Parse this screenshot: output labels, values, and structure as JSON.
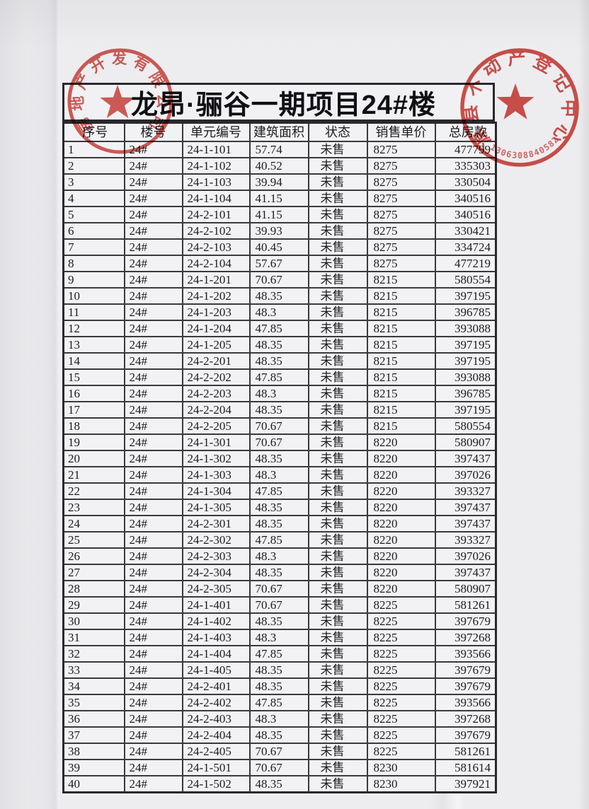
{
  "page": {
    "title": "龙昂·骊谷一期项目24#楼"
  },
  "stamps": {
    "color": "#cf3b33",
    "left": {
      "arc_text": "房地产开发有限公司",
      "symbol": "star"
    },
    "right": {
      "arc_text": "源县不动产登记中心",
      "code": "1306308840582",
      "symbol": "star"
    }
  },
  "table": {
    "headers": [
      "序号",
      "楼号",
      "单元编号",
      "建筑面积",
      "状态",
      "销售单价",
      "总房款"
    ],
    "rows": [
      [
        "1",
        "24#",
        "24-1-101",
        "57.74",
        "未售",
        "8275",
        "477799"
      ],
      [
        "2",
        "24#",
        "24-1-102",
        "40.52",
        "未售",
        "8275",
        "335303"
      ],
      [
        "3",
        "24#",
        "24-1-103",
        "39.94",
        "未售",
        "8275",
        "330504"
      ],
      [
        "4",
        "24#",
        "24-1-104",
        "41.15",
        "未售",
        "8275",
        "340516"
      ],
      [
        "5",
        "24#",
        "24-2-101",
        "41.15",
        "未售",
        "8275",
        "340516"
      ],
      [
        "6",
        "24#",
        "24-2-102",
        "39.93",
        "未售",
        "8275",
        "330421"
      ],
      [
        "7",
        "24#",
        "24-2-103",
        "40.45",
        "未售",
        "8275",
        "334724"
      ],
      [
        "8",
        "24#",
        "24-2-104",
        "57.67",
        "未售",
        "8275",
        "477219"
      ],
      [
        "9",
        "24#",
        "24-1-201",
        "70.67",
        "未售",
        "8215",
        "580554"
      ],
      [
        "10",
        "24#",
        "24-1-202",
        "48.35",
        "未售",
        "8215",
        "397195"
      ],
      [
        "11",
        "24#",
        "24-1-203",
        "48.3",
        "未售",
        "8215",
        "396785"
      ],
      [
        "12",
        "24#",
        "24-1-204",
        "47.85",
        "未售",
        "8215",
        "393088"
      ],
      [
        "13",
        "24#",
        "24-1-205",
        "48.35",
        "未售",
        "8215",
        "397195"
      ],
      [
        "14",
        "24#",
        "24-2-201",
        "48.35",
        "未售",
        "8215",
        "397195"
      ],
      [
        "15",
        "24#",
        "24-2-202",
        "47.85",
        "未售",
        "8215",
        "393088"
      ],
      [
        "16",
        "24#",
        "24-2-203",
        "48.3",
        "未售",
        "8215",
        "396785"
      ],
      [
        "17",
        "24#",
        "24-2-204",
        "48.35",
        "未售",
        "8215",
        "397195"
      ],
      [
        "18",
        "24#",
        "24-2-205",
        "70.67",
        "未售",
        "8215",
        "580554"
      ],
      [
        "19",
        "24#",
        "24-1-301",
        "70.67",
        "未售",
        "8220",
        "580907"
      ],
      [
        "20",
        "24#",
        "24-1-302",
        "48.35",
        "未售",
        "8220",
        "397437"
      ],
      [
        "21",
        "24#",
        "24-1-303",
        "48.3",
        "未售",
        "8220",
        "397026"
      ],
      [
        "22",
        "24#",
        "24-1-304",
        "47.85",
        "未售",
        "8220",
        "393327"
      ],
      [
        "23",
        "24#",
        "24-1-305",
        "48.35",
        "未售",
        "8220",
        "397437"
      ],
      [
        "24",
        "24#",
        "24-2-301",
        "48.35",
        "未售",
        "8220",
        "397437"
      ],
      [
        "25",
        "24#",
        "24-2-302",
        "47.85",
        "未售",
        "8220",
        "393327"
      ],
      [
        "26",
        "24#",
        "24-2-303",
        "48.3",
        "未售",
        "8220",
        "397026"
      ],
      [
        "27",
        "24#",
        "24-2-304",
        "48.35",
        "未售",
        "8220",
        "397437"
      ],
      [
        "28",
        "24#",
        "24-2-305",
        "70.67",
        "未售",
        "8220",
        "580907"
      ],
      [
        "29",
        "24#",
        "24-1-401",
        "70.67",
        "未售",
        "8225",
        "581261"
      ],
      [
        "30",
        "24#",
        "24-1-402",
        "48.35",
        "未售",
        "8225",
        "397679"
      ],
      [
        "31",
        "24#",
        "24-1-403",
        "48.3",
        "未售",
        "8225",
        "397268"
      ],
      [
        "32",
        "24#",
        "24-1-404",
        "47.85",
        "未售",
        "8225",
        "393566"
      ],
      [
        "33",
        "24#",
        "24-1-405",
        "48.35",
        "未售",
        "8225",
        "397679"
      ],
      [
        "34",
        "24#",
        "24-2-401",
        "48.35",
        "未售",
        "8225",
        "397679"
      ],
      [
        "35",
        "24#",
        "24-2-402",
        "47.85",
        "未售",
        "8225",
        "393566"
      ],
      [
        "36",
        "24#",
        "24-2-403",
        "48.3",
        "未售",
        "8225",
        "397268"
      ],
      [
        "37",
        "24#",
        "24-2-404",
        "48.35",
        "未售",
        "8225",
        "397679"
      ],
      [
        "38",
        "24#",
        "24-2-405",
        "70.67",
        "未售",
        "8225",
        "581261"
      ],
      [
        "39",
        "24#",
        "24-1-501",
        "70.67",
        "未售",
        "8230",
        "581614"
      ],
      [
        "40",
        "24#",
        "24-1-502",
        "48.35",
        "未售",
        "8230",
        "397921"
      ]
    ]
  }
}
